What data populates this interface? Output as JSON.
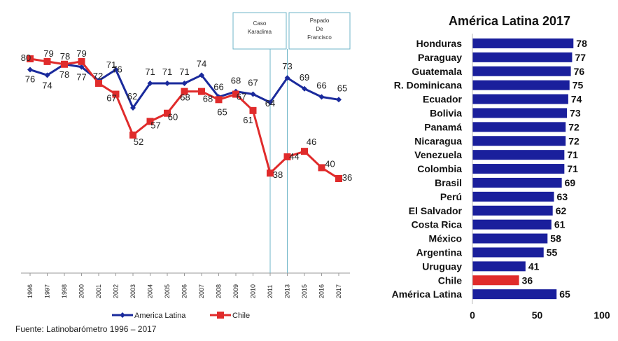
{
  "source": "Fuente: Latinobarómetro 1996 – 2017",
  "colors": {
    "latam": "#1a2a9c",
    "chile": "#e02b2b",
    "bar": "#1a1f9c",
    "bar_highlight": "#e02b2b"
  },
  "chart_data": [
    {
      "type": "line",
      "categories": [
        "1996",
        "1997",
        "1998",
        "2000",
        "2001",
        "2002",
        "2003",
        "2004",
        "2005",
        "2006",
        "2007",
        "2008",
        "2009",
        "2010",
        "2011",
        "2013",
        "2015",
        "2016",
        "2017"
      ],
      "series": [
        {
          "name": "America Latina",
          "values": [
            76,
            74,
            78,
            77,
            72,
            76,
            62,
            71,
            71,
            71,
            74,
            66,
            68,
            67,
            64,
            73,
            69,
            66,
            65
          ]
        },
        {
          "name": "Chile",
          "values": [
            80,
            79,
            78,
            79,
            71,
            67,
            52,
            57,
            60,
            68,
            68,
            65,
            67,
            61,
            38,
            44,
            46,
            40,
            36
          ]
        }
      ],
      "events": [
        {
          "label": "Caso Karadima",
          "at": "2011"
        },
        {
          "label": "Papado De Francisco",
          "at": "2013"
        }
      ],
      "ylim": [
        0,
        100
      ],
      "legend_position": "bottom"
    },
    {
      "type": "bar",
      "title": "América Latina 2017",
      "categories": [
        "Honduras",
        "Paraguay",
        "Guatemala",
        "R. Dominicana",
        "Ecuador",
        "Bolivia",
        "Panamá",
        "Nicaragua",
        "Venezuela",
        "Colombia",
        "Brasil",
        "Perú",
        "El Salvador",
        "Costa Rica",
        "México",
        "Argentina",
        "Uruguay",
        "Chile",
        "América Latina"
      ],
      "values": [
        78,
        77,
        76,
        75,
        74,
        73,
        72,
        72,
        71,
        71,
        69,
        63,
        62,
        61,
        58,
        55,
        41,
        36,
        65
      ],
      "highlight": "Chile",
      "xlim": [
        0,
        100
      ],
      "xticks": [
        "0",
        "50",
        "100"
      ]
    }
  ]
}
